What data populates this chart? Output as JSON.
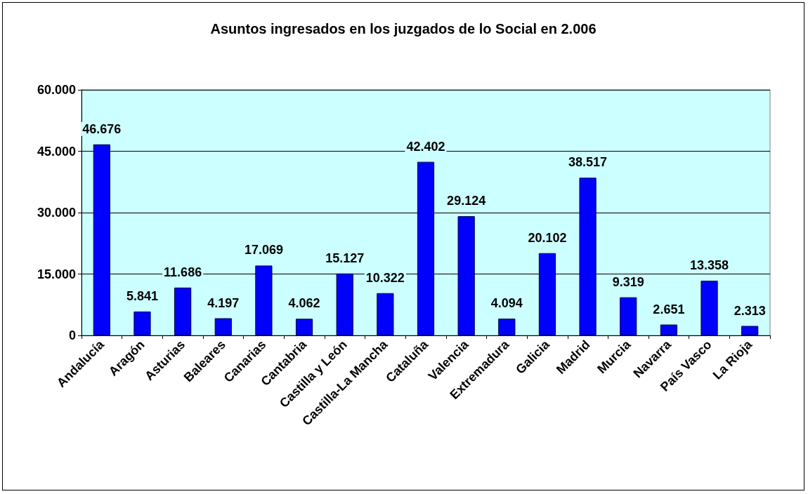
{
  "chart_data": {
    "type": "bar",
    "title": "Asuntos ingresados en los juzgados de lo Social en 2.006",
    "categories": [
      "Andalucía",
      "Aragón",
      "Asturias",
      "Baleares",
      "Canarias",
      "Cantabria",
      "Castilla y León",
      "Castilla-La Mancha",
      "Cataluña",
      "Valencia",
      "Extremadura",
      "Galicia",
      "Madrid",
      "Murcia",
      "Navarra",
      "País Vasco",
      "La Rioja"
    ],
    "values": [
      46676,
      5841,
      11686,
      4197,
      17069,
      4062,
      15127,
      10322,
      42402,
      29124,
      4094,
      20102,
      38517,
      9319,
      2651,
      13358,
      2313
    ],
    "value_labels": [
      "46.676",
      "5.841",
      "11.686",
      "4.197",
      "17.069",
      "4.062",
      "15.127",
      "10.322",
      "42.402",
      "29.124",
      "4.094",
      "20.102",
      "38.517",
      "9.319",
      "2.651",
      "13.358",
      "2.313"
    ],
    "color": "#0000ff",
    "ylim": [
      0,
      60000
    ],
    "yticks": [
      0,
      {
        "value": 15000,
        "label": "15.000"
      },
      {
        "value": 30000,
        "label": "30.000"
      },
      {
        "value": 45000,
        "label": "45.000"
      },
      {
        "value": 60000,
        "label": "60.000"
      }
    ],
    "grid": "y"
  }
}
